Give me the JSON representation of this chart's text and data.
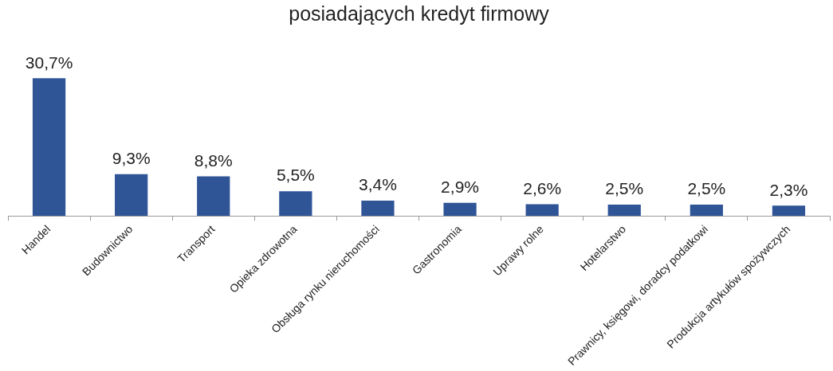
{
  "chart_data": {
    "type": "bar",
    "title": "posiadających kredyt firmowy",
    "categories": [
      "Handel",
      "Budownictwo",
      "Transport",
      "Opieka zdrowotna",
      "Obsługa rynku nieruchomości",
      "Gastronomia",
      "Uprawy rolne",
      "Hotelarstwo",
      "Prawnicy, księgowi, doradcy podatkowi",
      "Produkcja artykułów spożywczych"
    ],
    "values": [
      30.7,
      9.3,
      8.8,
      5.5,
      3.4,
      2.9,
      2.6,
      2.5,
      2.5,
      2.3
    ],
    "value_labels": [
      "30,7%",
      "9,3%",
      "8,8%",
      "5,5%",
      "3,4%",
      "2,9%",
      "2,6%",
      "2,5%",
      "2,5%",
      "2,3%"
    ],
    "color": "#2f5597",
    "grid": false,
    "legend": false
  }
}
